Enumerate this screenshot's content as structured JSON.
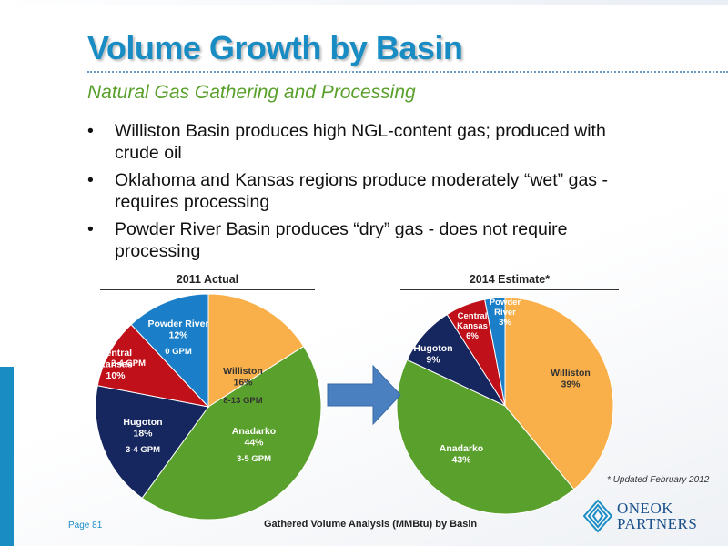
{
  "header": {
    "title": "Volume Growth by Basin",
    "subtitle": "Natural Gas Gathering and Processing"
  },
  "bullets": [
    "Williston Basin produces high NGL-content gas; produced with crude oil",
    "Oklahoma and Kansas regions produce moderately “wet” gas - requires processing",
    "Powder River Basin produces “dry” gas - does not require processing"
  ],
  "bullet_symbol": "•",
  "chart_data": [
    {
      "type": "pie",
      "title": "2011 Actual",
      "slices": [
        {
          "label": "Williston",
          "value": 16,
          "pct_label": "16%",
          "note": "8-13 GPM",
          "color": "#f9b04a"
        },
        {
          "label": "Anadarko",
          "value": 44,
          "pct_label": "44%",
          "note": "3-5 GPM",
          "color": "#5aa02c"
        },
        {
          "label": "Hugoton",
          "value": 18,
          "pct_label": "18%",
          "note": "3-4 GPM",
          "color": "#16265e"
        },
        {
          "label": "Central Kansas",
          "value": 10,
          "pct_label": "10%",
          "note": "2-4 GPM",
          "color": "#c0101a"
        },
        {
          "label": "Powder River",
          "value": 12,
          "pct_label": "12%",
          "note": "0 GPM",
          "color": "#1a7fc8"
        }
      ]
    },
    {
      "type": "pie",
      "title": "2014 Estimate*",
      "slices": [
        {
          "label": "Williston",
          "value": 39,
          "pct_label": "39%",
          "color": "#f9b04a"
        },
        {
          "label": "Anadarko",
          "value": 43,
          "pct_label": "43%",
          "color": "#5aa02c"
        },
        {
          "label": "Hugoton",
          "value": 9,
          "pct_label": "9%",
          "color": "#16265e"
        },
        {
          "label": "Central Kansas",
          "value": 6,
          "pct_label": "6%",
          "color": "#c0101a"
        },
        {
          "label": "Powder River",
          "value": 3,
          "pct_label": "3%",
          "color": "#1a7fc8"
        }
      ]
    }
  ],
  "footnote": "* Updated February 2012",
  "footer": {
    "page": "Page 81",
    "caption": "Gathered Volume Analysis (MMBtu) by Basin",
    "logo_line1": "ONEOK",
    "logo_line2": "PARTNERS"
  },
  "colors": {
    "accent": "#1a8cc4",
    "subtitle": "#5aa02c",
    "arrow": "#4a7fc0"
  },
  "icons": {
    "arrow": "right-arrow-icon",
    "logo": "oneok-logo-icon"
  }
}
